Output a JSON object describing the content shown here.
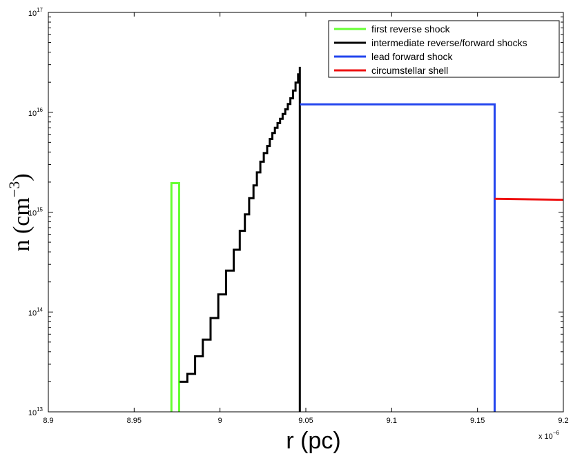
{
  "chart_data": {
    "type": "line",
    "title": "",
    "xlabel": "r (pc)",
    "ylabel_base": "n  (cm",
    "ylabel_exp": "−3",
    "ylabel_close": ")",
    "x_multiplier_text": "x 10",
    "x_multiplier_exp": "−6",
    "x_scale": 1e-06,
    "xlim": [
      8.9,
      9.2
    ],
    "ylim": [
      10000000000000.0,
      1e+17
    ],
    "yscale": "log",
    "grid": false,
    "legend_position": "top-right",
    "x_ticks": [
      8.9,
      8.95,
      9.0,
      9.05,
      9.1,
      9.15,
      9.2
    ],
    "x_tick_labels": [
      "8.9",
      "8.95",
      "9",
      "9.05",
      "9.1",
      "9.15",
      "9.2"
    ],
    "y_ticks": [
      {
        "value": 10000000000000.0,
        "base": "10",
        "exp": "13"
      },
      {
        "value": 100000000000000.0,
        "base": "10",
        "exp": "14"
      },
      {
        "value": 1000000000000000.0,
        "base": "10",
        "exp": "15"
      },
      {
        "value": 1e+16,
        "base": "10",
        "exp": "16"
      },
      {
        "value": 1e+17,
        "base": "10",
        "exp": "17"
      }
    ],
    "series": [
      {
        "name": "first reverse shock",
        "color": "#66ff33",
        "points": [
          [
            8.9717,
            10000000000000.0
          ],
          [
            8.9717,
            1950000000000000.0
          ],
          [
            8.9762,
            1950000000000000.0
          ],
          [
            8.9762,
            10000000000000.0
          ]
        ]
      },
      {
        "name": "intermediate reverse/forward shocks",
        "color": "#000000",
        "steps": {
          "x": [
            8.9765,
            8.981,
            8.9855,
            8.99,
            8.9945,
            8.999,
            9.0035,
            9.008,
            9.0115,
            9.0145,
            9.017,
            9.0195,
            9.0215,
            9.0235,
            9.0255,
            9.0275,
            9.029,
            9.0305,
            9.032,
            9.0335,
            9.035,
            9.0365,
            9.038,
            9.0395,
            9.041,
            9.0425,
            9.044,
            9.0455,
            9.0465
          ],
          "y": [
            20000000000000.0,
            24000000000000.0,
            36000000000000.0,
            53000000000000.0,
            87000000000000.0,
            150000000000000.0,
            260000000000000.0,
            420000000000000.0,
            650000000000000.0,
            950000000000000.0,
            1380000000000000.0,
            1850000000000000.0,
            2500000000000000.0,
            3200000000000000.0,
            3900000000000000.0,
            4600000000000000.0,
            5400000000000000.0,
            6200000000000000.0,
            7000000000000000.0,
            7800000000000000.0,
            8600000000000000.0,
            9600000000000000.0,
            1.07e+16,
            1.21e+16,
            1.38e+16,
            1.65e+16,
            1.98e+16,
            2.4e+16,
            2.85e+16
          ],
          "drop_to": 10000000000000.0
        }
      },
      {
        "name": "lead forward shock",
        "color": "#2244ee",
        "points": [
          [
            9.0465,
            1.2e+16
          ],
          [
            9.16,
            1.2e+16
          ],
          [
            9.16,
            10000000000000.0
          ]
        ]
      },
      {
        "name": "circumstellar shell",
        "color": "#ee1111",
        "points": [
          [
            9.16,
            1360000000000000.0
          ],
          [
            9.2,
            1330000000000000.0
          ]
        ]
      }
    ]
  }
}
